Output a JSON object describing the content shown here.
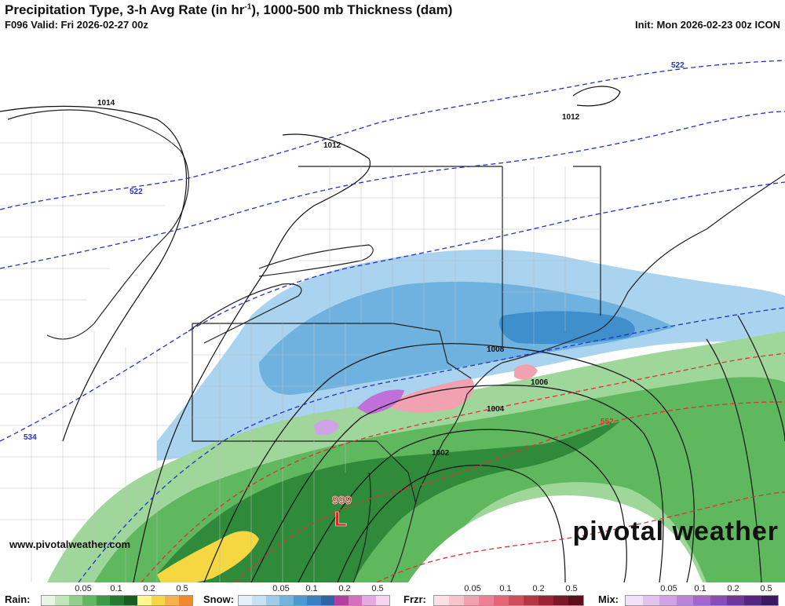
{
  "header": {
    "title": "Precipitation Type, 3-h Avg Rate (in hr",
    "title_sup": "-1",
    "title_rest": "), 1000-500 mb Thickness (dam)",
    "valid": "F096 Valid: Fri 2026-02-27 00z",
    "init": "Init: Mon 2026-02-23 00z ICON"
  },
  "map": {
    "isobar_labels": [
      "1014",
      "1012",
      "1012",
      "1008",
      "1006",
      "1004",
      "1002"
    ],
    "thickness_labels": [
      "522",
      "522",
      "534",
      "552"
    ],
    "low_center": {
      "pressure": "999",
      "symbol": "L"
    },
    "colors": {
      "rain": "#2e8b3a",
      "snow": "#4a9fd8",
      "freezing_rain": "#f08080",
      "mix": "#c070d8",
      "thickness_line": "#2233cc",
      "thickness_warm_line": "#dd3333",
      "isobar": "#111111",
      "low_marker": "#e02020"
    }
  },
  "watermark": {
    "url": "www.pivotalweather.com",
    "brand": "pivotal weather"
  },
  "legend": {
    "ticks": [
      "0.05",
      "0.1",
      "0.2",
      "0.5"
    ],
    "groups": [
      {
        "label": "Rain:",
        "colors": [
          "#e8f5e4",
          "#bfe5b8",
          "#90d08a",
          "#5fb75e",
          "#3c9a44",
          "#237a2f",
          "#155e20",
          "#fff68f",
          "#f5d742",
          "#f3b24a",
          "#f28a2b"
        ]
      },
      {
        "label": "Snow:",
        "colors": [
          "#e4f1fb",
          "#c6e1f4",
          "#9dcbeb",
          "#72b3e0",
          "#4c99d2",
          "#3a7fc0",
          "#2e63a6",
          "#b23ea0",
          "#d36fc1",
          "#e7a8de",
          "#f6d5ef"
        ]
      },
      {
        "label": "Frzr:",
        "colors": [
          "#fbe0e6",
          "#f7c3cd",
          "#f1a1b0",
          "#ec8193",
          "#e56577",
          "#d24b5c",
          "#b83343",
          "#9a2334",
          "#7a1826",
          "#5c0f1b"
        ]
      },
      {
        "label": "Mix:",
        "colors": [
          "#f2e1f8",
          "#e2c3f0",
          "#d0a3e6",
          "#bb84da",
          "#a566cc",
          "#8a4cb6",
          "#6f379c",
          "#552680",
          "#3c1864"
        ]
      }
    ]
  }
}
